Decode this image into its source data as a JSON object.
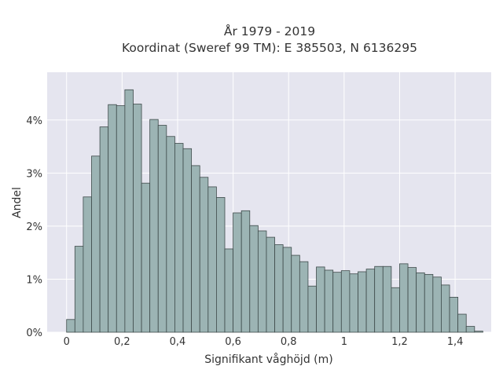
{
  "chart_data": {
    "type": "bar",
    "title_line1": "År 1979 - 2019",
    "title_line2": "Koordinat (Sweref 99 TM): E 385503, N 6136295",
    "xlabel": "Signifikant våghöjd (m)",
    "ylabel": "Andel",
    "xlim": [
      -0.07,
      1.53
    ],
    "ylim": [
      0,
      4.9
    ],
    "bin_width": 0.03,
    "x_ticks": [
      {
        "value": 0,
        "label": "0"
      },
      {
        "value": 0.2,
        "label": "0,2"
      },
      {
        "value": 0.4,
        "label": "0,4"
      },
      {
        "value": 0.6,
        "label": "0,6"
      },
      {
        "value": 0.8,
        "label": "0,8"
      },
      {
        "value": 1.0,
        "label": "1"
      },
      {
        "value": 1.2,
        "label": "1,2"
      },
      {
        "value": 1.4,
        "label": "1,4"
      }
    ],
    "y_ticks": [
      {
        "value": 0,
        "label": "0%"
      },
      {
        "value": 1,
        "label": "1%"
      },
      {
        "value": 2,
        "label": "2%"
      },
      {
        "value": 3,
        "label": "3%"
      },
      {
        "value": 4,
        "label": "4%"
      }
    ],
    "bin_starts": [
      0,
      0.03,
      0.06,
      0.09,
      0.12,
      0.15,
      0.18,
      0.21,
      0.24,
      0.27,
      0.3,
      0.33,
      0.36,
      0.39,
      0.42,
      0.45,
      0.48,
      0.51,
      0.54,
      0.57,
      0.6,
      0.63,
      0.66,
      0.69,
      0.72,
      0.75,
      0.78,
      0.81,
      0.84,
      0.87,
      0.9,
      0.93,
      0.96,
      0.99,
      1.02,
      1.05,
      1.08,
      1.11,
      1.14,
      1.17,
      1.2,
      1.23,
      1.26,
      1.29,
      1.32,
      1.35,
      1.38,
      1.41,
      1.44
    ],
    "values": [
      0.24,
      1.62,
      2.55,
      3.32,
      3.87,
      4.29,
      4.27,
      4.57,
      4.3,
      2.81,
      4.01,
      3.9,
      3.69,
      3.56,
      3.46,
      3.14,
      2.92,
      2.74,
      2.54,
      1.57,
      2.25,
      2.29,
      2.01,
      1.91,
      1.79,
      1.65,
      1.6,
      1.45,
      1.33,
      0.87,
      1.23,
      1.17,
      1.13,
      1.16,
      1.1,
      1.14,
      1.19,
      1.24,
      1.24,
      0.84,
      1.29,
      1.22,
      1.12,
      1.09,
      1.04,
      0.89,
      0.66,
      0.34,
      0.11
    ],
    "last_bin": {
      "x": 1.47,
      "value": 0.02
    },
    "colors": {
      "plot_bg": "#e5e5ef",
      "bar_fill": "#9cb4b4",
      "bar_edge": "#3e4a4a",
      "grid": "#ffffff"
    },
    "grid": true,
    "legend": "none"
  }
}
